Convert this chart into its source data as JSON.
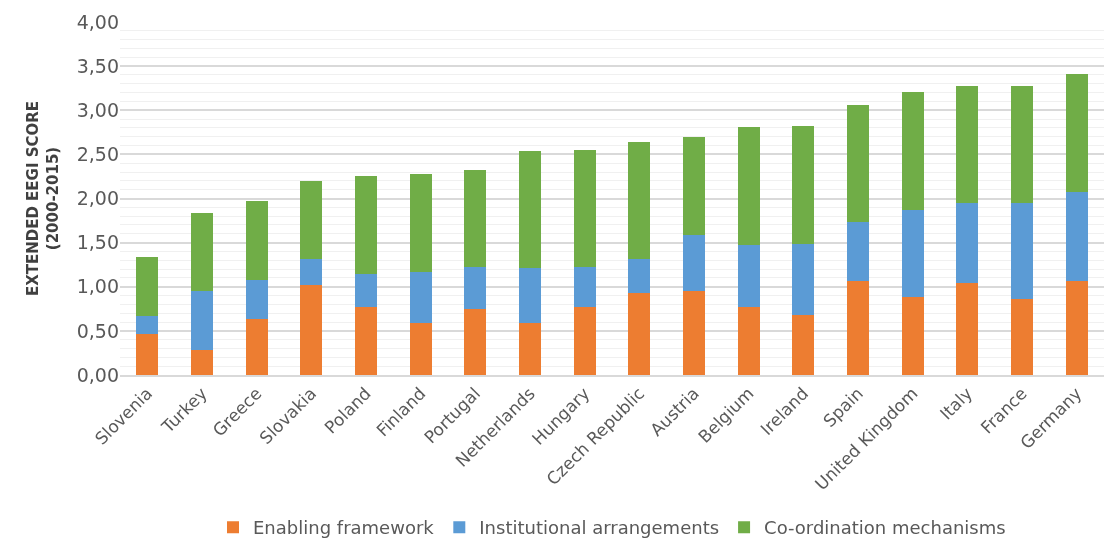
{
  "chart_data": {
    "type": "bar",
    "stacked": true,
    "ylabel": "EXTENDED EEGI SCORE\n(2000-2015)",
    "categories": [
      "Slovenia",
      "Turkey",
      "Greece",
      "Slovakia",
      "Poland",
      "Finland",
      "Portugal",
      "Netherlands",
      "Hungary",
      "Czech Republic",
      "Austria",
      "Belgium",
      "Ireland",
      "Spain",
      "United Kingdom",
      "Italy",
      "France",
      "Germany"
    ],
    "series": [
      {
        "name": "Enabling framework",
        "color": "#ed7d31",
        "values": [
          0.46,
          0.28,
          0.64,
          1.02,
          0.77,
          0.59,
          0.75,
          0.59,
          0.77,
          0.93,
          0.95,
          0.77,
          0.68,
          1.06,
          0.88,
          1.04,
          0.86,
          1.06
        ]
      },
      {
        "name": "Institutional arrangements",
        "color": "#5b9bd5",
        "values": [
          0.21,
          0.67,
          0.44,
          0.29,
          0.38,
          0.58,
          0.47,
          0.62,
          0.45,
          0.38,
          0.64,
          0.7,
          0.81,
          0.67,
          0.99,
          0.91,
          1.09,
          1.01
        ]
      },
      {
        "name": "Co-ordination mechanisms",
        "color": "#70ad47",
        "values": [
          0.67,
          0.89,
          0.89,
          0.89,
          1.11,
          1.11,
          1.1,
          1.33,
          1.33,
          1.33,
          1.11,
          1.34,
          1.33,
          1.33,
          1.34,
          1.33,
          1.33,
          1.34
        ]
      }
    ],
    "ylim": [
      0,
      4
    ],
    "yticks": [
      {
        "value": 0,
        "label": "0,00"
      },
      {
        "value": 0.5,
        "label": "0,50"
      },
      {
        "value": 1,
        "label": "1,00"
      },
      {
        "value": 1.5,
        "label": "1,50"
      },
      {
        "value": 2,
        "label": "2,00"
      },
      {
        "value": 2.5,
        "label": "2,50"
      },
      {
        "value": 3,
        "label": "3,00"
      },
      {
        "value": 3.5,
        "label": "3,50"
      },
      {
        "value": 4,
        "label": "4,00"
      }
    ],
    "grid": "y",
    "legend": "bottom"
  }
}
